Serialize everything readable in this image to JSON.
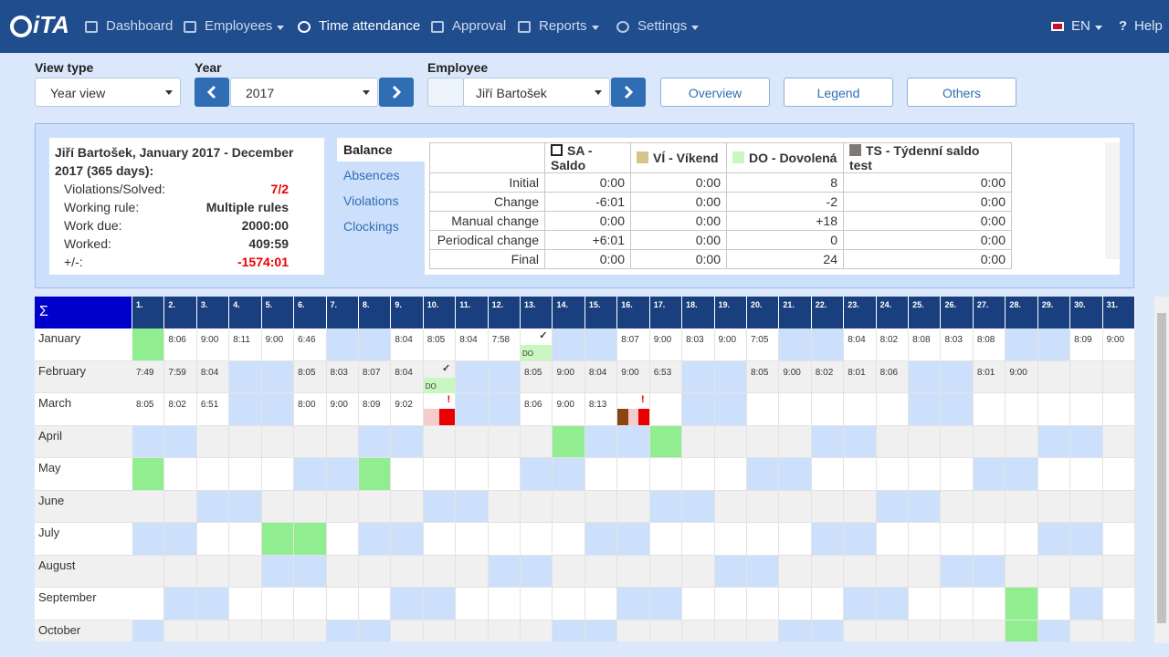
{
  "nav": {
    "logo": "iTA",
    "items": [
      "Dashboard",
      "Employees",
      "Time attendance",
      "Approval",
      "Reports",
      "Settings"
    ],
    "language": "EN",
    "help": "Help"
  },
  "toolbar": {
    "view_type": {
      "label": "View type",
      "value": "Year view"
    },
    "year": {
      "label": "Year",
      "value": "2017"
    },
    "employee": {
      "label": "Employee",
      "value": "Jiří Bartošek"
    },
    "buttons": [
      "Overview",
      "Legend",
      "Others"
    ]
  },
  "summary": {
    "title": "Jiří Bartošek, January 2017 - December 2017 (365 days):",
    "rows": [
      [
        "Violations/Solved:",
        "7/2"
      ],
      [
        "Working rule:",
        "Multiple rules"
      ],
      [
        "Work due:",
        "2000:00"
      ],
      [
        "Worked:",
        "409:59"
      ],
      [
        "+/-:",
        "-1574:01"
      ]
    ]
  },
  "tabs": [
    "Balance",
    "Absences",
    "Violations",
    "Clockings"
  ],
  "balance": {
    "columns": [
      {
        "label": "SA - Saldo",
        "color": "#ffffff"
      },
      {
        "label": "VÍ - Víkend",
        "color": "#d4c58a"
      },
      {
        "label": "DO - Dovolená",
        "color": "#c8f7c0"
      },
      {
        "label": "TS - Týdenní saldo test",
        "color": "#7f7a75"
      }
    ],
    "rows": [
      [
        "Initial",
        "0:00",
        "0:00",
        "8",
        "0:00"
      ],
      [
        "Change",
        "-6:01",
        "0:00",
        "-2",
        "0:00"
      ],
      [
        "Manual change",
        "0:00",
        "0:00",
        "+18",
        "0:00"
      ],
      [
        "Periodical change",
        "+6:01",
        "0:00",
        "0",
        "0:00"
      ],
      [
        "Final",
        "0:00",
        "0:00",
        "24",
        "0:00"
      ]
    ]
  },
  "calendar": {
    "sum": "Σ",
    "days": [
      "1.",
      "2.",
      "3.",
      "4.",
      "5.",
      "6.",
      "7.",
      "8.",
      "9.",
      "10.",
      "11.",
      "12.",
      "13.",
      "14.",
      "15.",
      "16.",
      "17.",
      "18.",
      "19.",
      "20.",
      "21.",
      "22.",
      "23.",
      "24.",
      "25.",
      "26.",
      "27.",
      "28.",
      "29.",
      "30.",
      "31."
    ],
    "colors": {
      "weekend": "#cce0fb",
      "holiday": "#90ee90",
      "tag": "#c8f7c0"
    },
    "months": [
      {
        "name": "January",
        "weekends": [
          7,
          8,
          14,
          15,
          21,
          22,
          28,
          29
        ],
        "holidays": [
          1
        ],
        "times": [
          null,
          "8:06",
          "9:00",
          "8:11",
          "9:00",
          "6:46",
          null,
          null,
          "8:04",
          "8:05",
          "8:04",
          "7:58",
          null,
          null,
          null,
          "8:07",
          "9:00",
          "8:03",
          "9:00",
          "7:05",
          null,
          null,
          "8:04",
          "8:02",
          "8:08",
          "8:03",
          "8:08",
          null,
          null,
          "8:09",
          "9:00"
        ],
        "marks": [
          {
            "day": 13,
            "symbol": "✓",
            "tag": "DO"
          }
        ]
      },
      {
        "name": "February",
        "weekends": [
          4,
          5,
          11,
          12,
          18,
          19,
          25,
          26
        ],
        "holidays": [],
        "times": [
          "7:49",
          "7:59",
          "8:04",
          null,
          null,
          "8:05",
          "8:03",
          "8:07",
          "8:04",
          null,
          null,
          null,
          "8:05",
          "9:00",
          "8:04",
          "9:00",
          "6:53",
          null,
          null,
          "8:05",
          "9:00",
          "8:02",
          "8:01",
          "8:06",
          null,
          null,
          "8:01",
          "9:00",
          null,
          null,
          null
        ],
        "marks": [
          {
            "day": 10,
            "symbol": "✓",
            "tag": "DO"
          }
        ]
      },
      {
        "name": "March",
        "weekends": [
          4,
          5,
          11,
          12,
          18,
          19,
          25,
          26
        ],
        "holidays": [],
        "times": [
          "8:05",
          "8:02",
          "6:51",
          null,
          null,
          "8:00",
          "9:00",
          "8:09",
          "9:02",
          null,
          null,
          null,
          "8:06",
          "9:00",
          "8:13",
          null,
          null,
          null,
          null,
          null,
          null,
          null,
          null,
          null,
          null,
          null,
          null,
          null,
          null,
          null,
          null
        ],
        "marks": [
          {
            "day": 10,
            "symbol": "!",
            "bars": [
              "#f4cccc",
              "#e60000"
            ]
          },
          {
            "day": 16,
            "symbol": "!",
            "bars": [
              "#8b4513",
              "#f4cccc",
              "#e60000"
            ]
          }
        ]
      },
      {
        "name": "April",
        "weekends": [
          1,
          2,
          8,
          9,
          15,
          16,
          22,
          23,
          29,
          30
        ],
        "holidays": [
          14,
          17
        ]
      },
      {
        "name": "May",
        "weekends": [
          6,
          7,
          13,
          14,
          20,
          21,
          27,
          28
        ],
        "holidays": [
          1,
          8
        ]
      },
      {
        "name": "June",
        "weekends": [
          3,
          4,
          10,
          11,
          17,
          18,
          24,
          25
        ],
        "holidays": []
      },
      {
        "name": "July",
        "weekends": [
          1,
          2,
          8,
          9,
          15,
          16,
          22,
          23,
          29,
          30
        ],
        "holidays": [
          5,
          6
        ]
      },
      {
        "name": "August",
        "weekends": [
          5,
          6,
          12,
          13,
          19,
          20,
          26,
          27
        ],
        "holidays": []
      },
      {
        "name": "September",
        "weekends": [
          2,
          3,
          9,
          10,
          16,
          17,
          23,
          24,
          30
        ],
        "holidays": [
          28
        ]
      },
      {
        "name": "October",
        "weekends": [
          1,
          7,
          8,
          14,
          15,
          21,
          22,
          29
        ],
        "holidays": [
          28
        ]
      }
    ]
  }
}
